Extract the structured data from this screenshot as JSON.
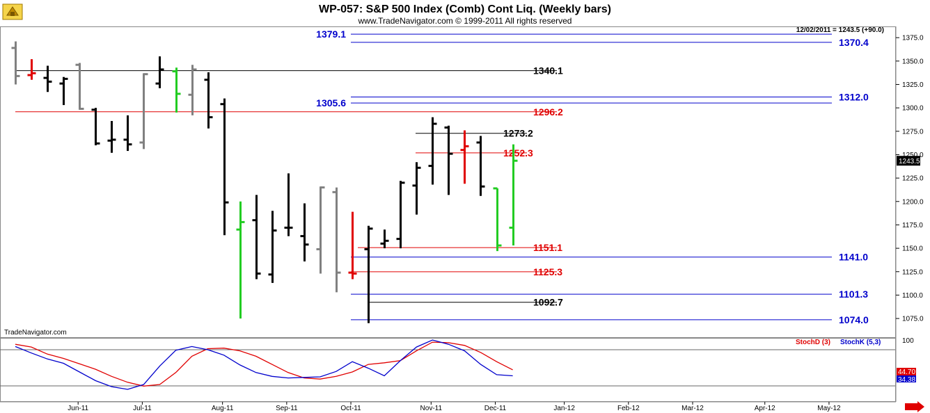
{
  "header": {
    "title": "WP-057:  S&P 500 Index (Comb) Cont Liq.  (Weekly bars)",
    "copyright": "www.TradeNavigator.com © 1999-2011 All rights reserved",
    "last_bar_info": "12/02/2011 = 1243.5 (+90.0)",
    "watermark": "TradeNavigator.com"
  },
  "colors": {
    "up_bar": "#000000",
    "down_bar": "#808080",
    "red_bar": "#e00000",
    "green_bar": "#22cc22",
    "blue_level": "#0000cc",
    "red_level": "#e00000",
    "black_level": "#000000",
    "stoch_d": "#e00000",
    "stoch_k": "#0000cc"
  },
  "chart_data": {
    "type": "ohlc",
    "y_range": [
      1055,
      1387
    ],
    "y_ticks": [
      1075.0,
      1100.0,
      1125.0,
      1150.0,
      1175.0,
      1200.0,
      1225.0,
      1250.0,
      1275.0,
      1300.0,
      1325.0,
      1350.0,
      1375.0
    ],
    "last_price_label": "1243.5",
    "month_labels": [
      {
        "label": "Jun-11",
        "week": 4
      },
      {
        "label": "Jul-11",
        "week": 8
      },
      {
        "label": "Aug-11",
        "week": 13
      },
      {
        "label": "Sep-11",
        "week": 17
      },
      {
        "label": "Oct-11",
        "week": 21
      },
      {
        "label": "Nov-11",
        "week": 26
      },
      {
        "label": "Dec-11",
        "week": 30
      },
      {
        "label": "Jan-12",
        "week": 34.3
      },
      {
        "label": "Feb-12",
        "week": 38.3
      },
      {
        "label": "Mar-12",
        "week": 42.3
      },
      {
        "label": "Apr-12",
        "week": 46.8
      },
      {
        "label": "May-12",
        "week": 50.8
      }
    ],
    "bars": [
      {
        "week": 0,
        "open": 1364,
        "high": 1371,
        "low": 1325,
        "close": 1334,
        "color": "down"
      },
      {
        "week": 1,
        "open": 1335,
        "high": 1352,
        "low": 1330,
        "close": 1337,
        "color": "red"
      },
      {
        "week": 2,
        "open": 1332,
        "high": 1345,
        "low": 1317,
        "close": 1328,
        "color": "up"
      },
      {
        "week": 3,
        "open": 1326,
        "high": 1333,
        "low": 1303,
        "close": 1331,
        "color": "up"
      },
      {
        "week": 4,
        "open": 1346,
        "high": 1348,
        "low": 1298,
        "close": 1299,
        "color": "down"
      },
      {
        "week": 5,
        "open": 1298,
        "high": 1300,
        "low": 1260,
        "close": 1262,
        "color": "up"
      },
      {
        "week": 6,
        "open": 1265,
        "high": 1286,
        "low": 1252,
        "close": 1266,
        "color": "up"
      },
      {
        "week": 7,
        "open": 1266,
        "high": 1292,
        "low": 1254,
        "close": 1261,
        "color": "up"
      },
      {
        "week": 8,
        "open": 1263,
        "high": 1337,
        "low": 1256,
        "close": 1336,
        "color": "down"
      },
      {
        "week": 9,
        "open": 1326,
        "high": 1355,
        "low": 1321,
        "close": 1341,
        "color": "up"
      },
      {
        "week": 10,
        "open": 1339,
        "high": 1343,
        "low": 1295,
        "close": 1315,
        "color": "green"
      },
      {
        "week": 11,
        "open": 1314,
        "high": 1346,
        "low": 1292,
        "close": 1341,
        "color": "down"
      },
      {
        "week": 12,
        "open": 1330,
        "high": 1338,
        "low": 1278,
        "close": 1290,
        "color": "up"
      },
      {
        "week": 13,
        "open": 1304,
        "high": 1310,
        "low": 1164,
        "close": 1199,
        "color": "up"
      },
      {
        "week": 14,
        "open": 1170,
        "high": 1200,
        "low": 1075,
        "close": 1178,
        "color": "green"
      },
      {
        "week": 15,
        "open": 1180,
        "high": 1207,
        "low": 1117,
        "close": 1123,
        "color": "up"
      },
      {
        "week": 16,
        "open": 1122,
        "high": 1190,
        "low": 1113,
        "close": 1169,
        "color": "up"
      },
      {
        "week": 17,
        "open": 1172,
        "high": 1230,
        "low": 1163,
        "close": 1172,
        "color": "up"
      },
      {
        "week": 18,
        "open": 1163,
        "high": 1198,
        "low": 1136,
        "close": 1154,
        "color": "up"
      },
      {
        "week": 19,
        "open": 1149,
        "high": 1216,
        "low": 1123,
        "close": 1215,
        "color": "down"
      },
      {
        "week": 20,
        "open": 1210,
        "high": 1215,
        "low": 1103,
        "close": 1124,
        "color": "down"
      },
      {
        "week": 21,
        "open": 1124,
        "high": 1189,
        "low": 1117,
        "close": 1123,
        "color": "red"
      },
      {
        "week": 22,
        "open": 1149,
        "high": 1174,
        "low": 1070,
        "close": 1171,
        "color": "up"
      },
      {
        "week": 23,
        "open": 1155,
        "high": 1170,
        "low": 1150,
        "close": 1158,
        "color": "up"
      },
      {
        "week": 24,
        "open": 1160,
        "high": 1222,
        "low": 1150,
        "close": 1220,
        "color": "up"
      },
      {
        "week": 25,
        "open": 1217,
        "high": 1242,
        "low": 1186,
        "close": 1236,
        "color": "up"
      },
      {
        "week": 26,
        "open": 1238,
        "high": 1290,
        "low": 1218,
        "close": 1283,
        "color": "up"
      },
      {
        "week": 27,
        "open": 1279,
        "high": 1281,
        "low": 1207,
        "close": 1251,
        "color": "up"
      },
      {
        "week": 28,
        "open": 1255,
        "high": 1276,
        "low": 1219,
        "close": 1259,
        "color": "red"
      },
      {
        "week": 29,
        "open": 1263,
        "high": 1270,
        "low": 1206,
        "close": 1216,
        "color": "up"
      },
      {
        "week": 30,
        "open": 1214,
        "high": 1214,
        "low": 1147,
        "close": 1153,
        "color": "green"
      },
      {
        "week": 31,
        "open": 1172,
        "high": 1261,
        "low": 1153,
        "close": 1243.5,
        "color": "green"
      }
    ],
    "levels": [
      {
        "value": 1379.1,
        "label": "1379.1",
        "color": "blue",
        "label_side": "left"
      },
      {
        "value": 1370.4,
        "label": "1370.4",
        "color": "blue",
        "label_side": "right"
      },
      {
        "value": 1340.1,
        "label": "1340.1",
        "color": "black",
        "label_side": "mid"
      },
      {
        "value": 1312.0,
        "label": "1312.0",
        "color": "blue",
        "label_side": "right"
      },
      {
        "value": 1305.6,
        "label": "1305.6",
        "color": "blue",
        "label_side": "left"
      },
      {
        "value": 1296.2,
        "label": "1296.2",
        "color": "red",
        "label_side": "mid"
      },
      {
        "value": 1273.2,
        "label": "1273.2",
        "color": "black",
        "label_side": "mid"
      },
      {
        "value": 1252.3,
        "label": "1252.3",
        "color": "red",
        "label_side": "mid"
      },
      {
        "value": 1151.1,
        "label": "1151.1",
        "color": "red",
        "label_side": "mid"
      },
      {
        "value": 1141.0,
        "label": "1141.0",
        "color": "blue",
        "label_side": "right"
      },
      {
        "value": 1125.3,
        "label": "1125.3",
        "color": "red",
        "label_side": "mid"
      },
      {
        "value": 1101.3,
        "label": "1101.3",
        "color": "blue",
        "label_side": "right"
      },
      {
        "value": 1092.7,
        "label": "1092.7",
        "color": "black",
        "label_side": "mid"
      },
      {
        "value": 1074.0,
        "label": "1074.0",
        "color": "blue",
        "label_side": "right"
      }
    ],
    "stochastic": {
      "tick_label": "100",
      "d_label": "StochD (3)",
      "k_label": "StochK (5,3)",
      "d_last": "44.70",
      "k_last": "34.38",
      "stoch_d": [
        92,
        87,
        74,
        66,
        56,
        46,
        33,
        22,
        15,
        18,
        40,
        70,
        84,
        85,
        80,
        70,
        55,
        40,
        30,
        28,
        33,
        41,
        55,
        58,
        62,
        80,
        96,
        95,
        90,
        77,
        60,
        45
      ],
      "stoch_k": [
        88,
        76,
        65,
        57,
        41,
        25,
        14,
        9,
        18,
        52,
        81,
        88,
        82,
        72,
        54,
        40,
        33,
        30,
        31,
        32,
        42,
        60,
        48,
        34,
        62,
        87,
        100,
        92,
        80,
        55,
        36,
        34
      ]
    }
  }
}
